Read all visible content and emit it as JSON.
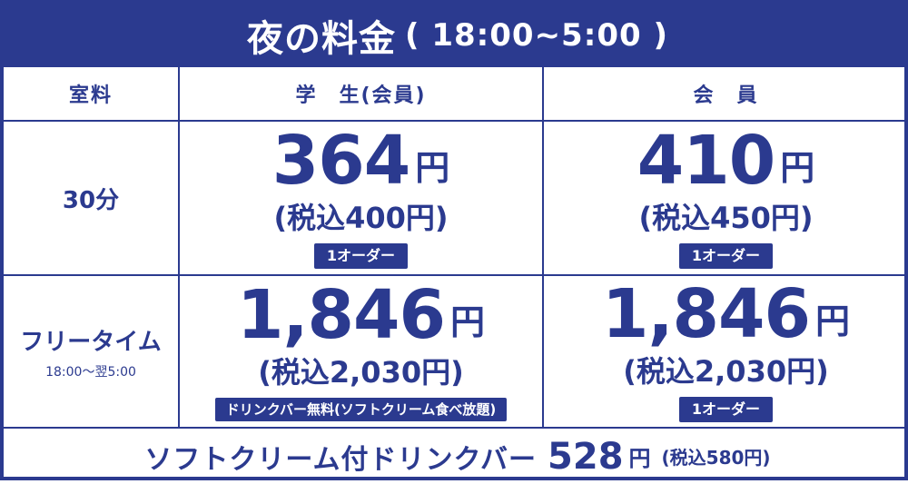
{
  "title": {
    "main": "夜の料金",
    "time": "( 18:00~5:00 )"
  },
  "headers": {
    "room": "室料",
    "student": "学　生(会員)",
    "member": "会　員"
  },
  "rows": [
    {
      "label": "30分",
      "sublabel": "",
      "student": {
        "price": "364",
        "yen": "円",
        "tax": "(税込400円)",
        "badge": "1オーダー"
      },
      "member": {
        "price": "410",
        "yen": "円",
        "tax": "(税込450円)",
        "badge": "1オーダー"
      }
    },
    {
      "label": "フリータイム",
      "sublabel": "18:00～翌5:00",
      "student": {
        "price": "1,846",
        "yen": "円",
        "tax": "(税込2,030円)",
        "badge": "ドリンクバー無料(ソフトクリーム食べ放題)"
      },
      "member": {
        "price": "1,846",
        "yen": "円",
        "tax": "(税込2,030円)",
        "badge": "1オーダー"
      }
    }
  ],
  "footer": {
    "label": "ソフトクリーム付ドリンクバー",
    "price": "528",
    "yen": "円",
    "tax": "(税込580円)"
  },
  "colors": {
    "brand": "#2b3a8f",
    "background": "#ffffff"
  }
}
